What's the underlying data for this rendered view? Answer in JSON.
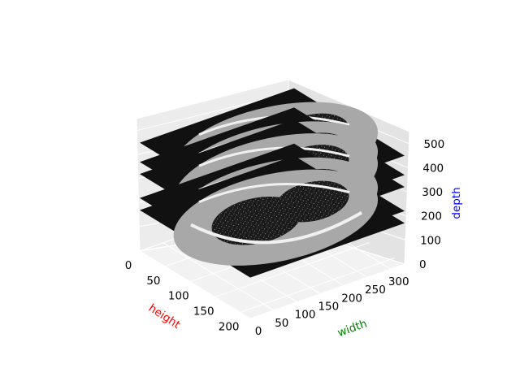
{
  "chart_data": {
    "type": "3d-slices",
    "grid": true,
    "axes": {
      "x": {
        "label": "height",
        "color": "#ff0000",
        "range": [
          0,
          220
        ],
        "ticks": [
          0,
          50,
          100,
          150,
          200
        ]
      },
      "y": {
        "label": "width",
        "color": "#008000",
        "range": [
          0,
          330
        ],
        "ticks": [
          0,
          50,
          100,
          150,
          200,
          250,
          300
        ]
      },
      "z": {
        "label": "depth",
        "color": "#0000ff",
        "range": [
          0,
          550
        ],
        "ticks": [
          0,
          100,
          200,
          300,
          400,
          500
        ]
      }
    },
    "slices": [
      {
        "depth": 170
      },
      {
        "depth": 220
      },
      {
        "depth": 320
      },
      {
        "depth": 370
      },
      {
        "depth": 450
      }
    ]
  }
}
